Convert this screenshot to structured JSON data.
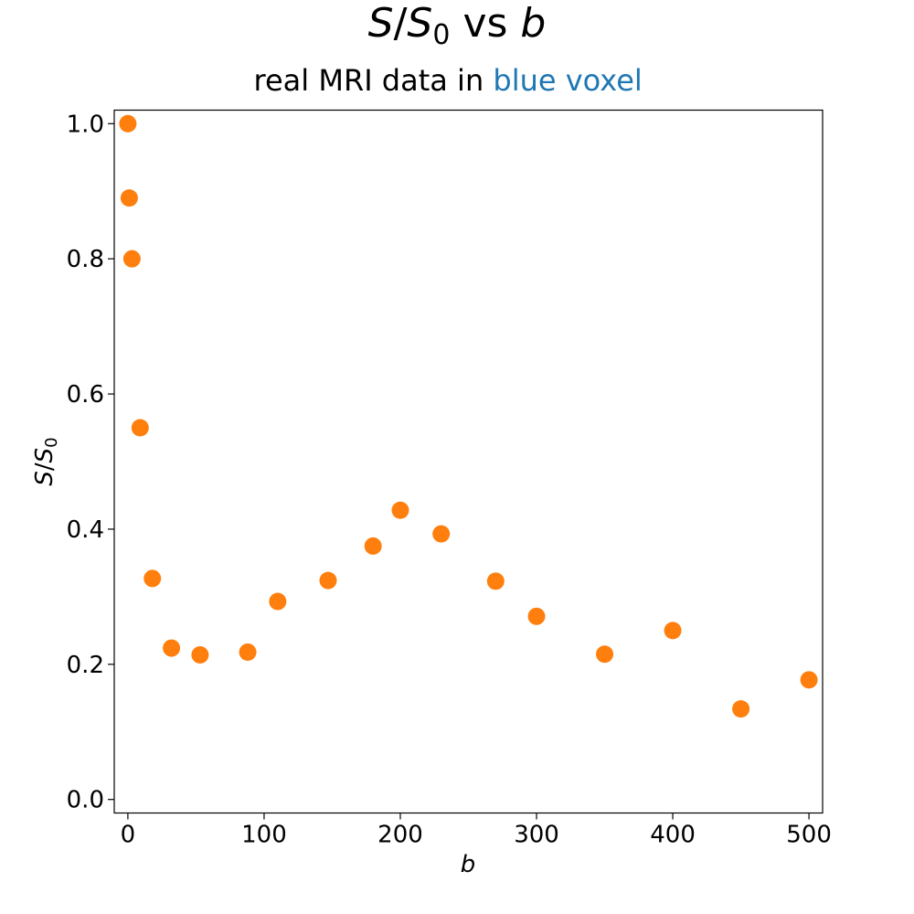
{
  "chart_data": {
    "type": "scatter",
    "title": {
      "var": "S",
      "slash": "/",
      "base": "S",
      "sub": "0",
      "mid": " vs ",
      "xvar": "b"
    },
    "subtitle": {
      "text": "real MRI data in ",
      "highlight": "blue voxel",
      "highlight_color": "#1f77b4"
    },
    "xlabel": "b",
    "ylabel": {
      "var": "S",
      "slash": "/",
      "base": "S",
      "sub": "0"
    },
    "xlim": [
      -10,
      510
    ],
    "ylim": [
      -0.02,
      1.02
    ],
    "xticks": [
      0,
      100,
      200,
      300,
      400,
      500
    ],
    "xtick_labels": [
      "0",
      "100",
      "200",
      "300",
      "400",
      "500"
    ],
    "yticks": [
      0.0,
      0.2,
      0.4,
      0.6,
      0.8,
      1.0
    ],
    "ytick_labels": [
      "0.0",
      "0.2",
      "0.4",
      "0.6",
      "0.8",
      "1.0"
    ],
    "grid": false,
    "point_color": "#ff7f0e",
    "points": [
      {
        "x": 0,
        "y": 1.0
      },
      {
        "x": 1,
        "y": 0.89
      },
      {
        "x": 3,
        "y": 0.8
      },
      {
        "x": 9,
        "y": 0.55
      },
      {
        "x": 18,
        "y": 0.327
      },
      {
        "x": 32,
        "y": 0.224
      },
      {
        "x": 53,
        "y": 0.214
      },
      {
        "x": 88,
        "y": 0.218
      },
      {
        "x": 110,
        "y": 0.293
      },
      {
        "x": 147,
        "y": 0.324
      },
      {
        "x": 180,
        "y": 0.375
      },
      {
        "x": 200,
        "y": 0.428
      },
      {
        "x": 230,
        "y": 0.393
      },
      {
        "x": 270,
        "y": 0.323
      },
      {
        "x": 300,
        "y": 0.271
      },
      {
        "x": 350,
        "y": 0.215
      },
      {
        "x": 400,
        "y": 0.25
      },
      {
        "x": 450,
        "y": 0.134
      },
      {
        "x": 500,
        "y": 0.177
      }
    ]
  }
}
